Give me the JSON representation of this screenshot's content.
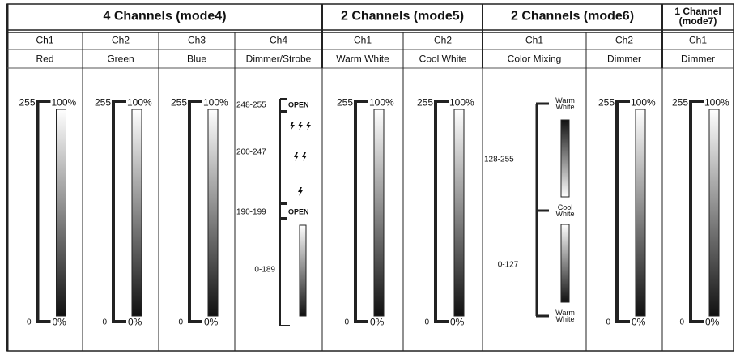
{
  "groups": [
    {
      "title": "4 Channels (mode4)",
      "channels": [
        {
          "channel": "Ch1",
          "function": "Red",
          "scale": {
            "max": "255",
            "max_pct": "100%",
            "min": "0",
            "min_pct": "0%"
          }
        },
        {
          "channel": "Ch2",
          "function": "Green",
          "scale": {
            "max": "255",
            "max_pct": "100%",
            "min": "0",
            "min_pct": "0%"
          }
        },
        {
          "channel": "Ch3",
          "function": "Blue",
          "scale": {
            "max": "255",
            "max_pct": "100%",
            "min": "0",
            "min_pct": "0%"
          }
        },
        {
          "channel": "Ch4",
          "function": "Dimmer/Strobe",
          "ranges": [
            {
              "range": "248-255",
              "label": "OPEN"
            },
            {
              "range": "200-247"
            },
            {
              "range": "190-199",
              "label": "OPEN"
            },
            {
              "range": "0-189"
            }
          ]
        }
      ]
    },
    {
      "title": "2 Channels (mode5)",
      "channels": [
        {
          "channel": "Ch1",
          "function": "Warm White",
          "scale": {
            "max": "255",
            "max_pct": "100%",
            "min": "0",
            "min_pct": "0%"
          }
        },
        {
          "channel": "Ch2",
          "function": "Cool  White",
          "scale": {
            "max": "255",
            "max_pct": "100%",
            "min": "0",
            "min_pct": "0%"
          }
        }
      ]
    },
    {
      "title": "2 Channels (mode6)",
      "channels": [
        {
          "channel": "Ch1",
          "function": "Color Mixing",
          "ranges": [
            "128-255",
            "0-127"
          ],
          "colors": [
            "Warm White",
            "Cool White",
            "Warm White"
          ]
        },
        {
          "channel": "Ch2",
          "function": "Dimmer",
          "scale": {
            "max": "255",
            "max_pct": "100%",
            "min": "0",
            "min_pct": "0%"
          }
        }
      ]
    },
    {
      "title": "1 Channel (mode7)",
      "channels": [
        {
          "channel": "Ch1",
          "function": "Dimmer",
          "scale": {
            "max": "255",
            "max_pct": "100%",
            "min": "0",
            "min_pct": "0%"
          }
        }
      ]
    }
  ]
}
